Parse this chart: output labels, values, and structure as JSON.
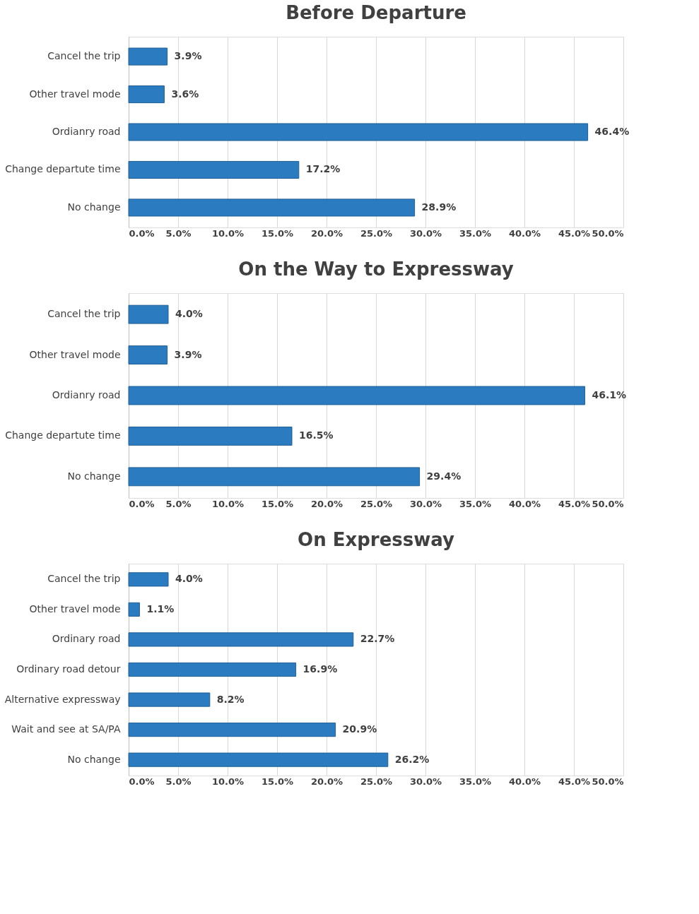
{
  "chart_data": [
    {
      "type": "bar",
      "orientation": "horizontal",
      "title": "Before Departure",
      "categories": [
        "Cancel the trip",
        "Other travel mode",
        "Ordianry road",
        "Change departute time",
        "No change"
      ],
      "values": [
        3.9,
        3.6,
        46.4,
        17.2,
        28.9
      ],
      "value_labels": [
        "3.9%",
        "3.6%",
        "46.4%",
        "17.2%",
        "28.9%"
      ],
      "color": "#2a7bc0",
      "xlim": [
        0,
        50
      ],
      "xticks": [
        {
          "value": 0,
          "label": "0.0%"
        },
        {
          "value": 5,
          "label": "5.0%"
        },
        {
          "value": 10,
          "label": "10.0%"
        },
        {
          "value": 15,
          "label": "15.0%"
        },
        {
          "value": 20,
          "label": "20.0%"
        },
        {
          "value": 25,
          "label": "25.0%"
        },
        {
          "value": 30,
          "label": "30.0%"
        },
        {
          "value": 35,
          "label": "35.0%"
        },
        {
          "value": 40,
          "label": "40.0%"
        },
        {
          "value": 45,
          "label": "45.0%"
        },
        {
          "value": 50,
          "label": "50.0%"
        }
      ],
      "grid": "x"
    },
    {
      "type": "bar",
      "orientation": "horizontal",
      "title": "On the Way to Expressway",
      "categories": [
        "Cancel the trip",
        "Other travel mode",
        "Ordianry road",
        "Change departute time",
        "No change"
      ],
      "values": [
        4.0,
        3.9,
        46.1,
        16.5,
        29.4
      ],
      "value_labels": [
        "4.0%",
        "3.9%",
        "46.1%",
        "16.5%",
        "29.4%"
      ],
      "color": "#2a7bc0",
      "xlim": [
        0,
        50
      ],
      "xticks": [
        {
          "value": 0,
          "label": "0.0%"
        },
        {
          "value": 5,
          "label": "5.0%"
        },
        {
          "value": 10,
          "label": "10.0%"
        },
        {
          "value": 15,
          "label": "15.0%"
        },
        {
          "value": 20,
          "label": "20.0%"
        },
        {
          "value": 25,
          "label": "25.0%"
        },
        {
          "value": 30,
          "label": "30.0%"
        },
        {
          "value": 35,
          "label": "35.0%"
        },
        {
          "value": 40,
          "label": "40.0%"
        },
        {
          "value": 45,
          "label": "45.0%"
        },
        {
          "value": 50,
          "label": "50.0%"
        }
      ],
      "grid": "x"
    },
    {
      "type": "bar",
      "orientation": "horizontal",
      "title": "On Expressway",
      "categories": [
        "Cancel the trip",
        "Other travel mode",
        "Ordinary road",
        "Ordinary road detour",
        "Alternative expressway",
        "Wait and see at SA/PA",
        "No change"
      ],
      "values": [
        4.0,
        1.1,
        22.7,
        16.9,
        8.2,
        20.9,
        26.2
      ],
      "value_labels": [
        "4.0%",
        "1.1%",
        "22.7%",
        "16.9%",
        "8.2%",
        "20.9%",
        "26.2%"
      ],
      "color": "#2a7bc0",
      "xlim": [
        0,
        50
      ],
      "xticks": [
        {
          "value": 0,
          "label": "0.0%"
        },
        {
          "value": 5,
          "label": "5.0%"
        },
        {
          "value": 10,
          "label": "10.0%"
        },
        {
          "value": 15,
          "label": "15.0%"
        },
        {
          "value": 20,
          "label": "20.0%"
        },
        {
          "value": 25,
          "label": "25.0%"
        },
        {
          "value": 30,
          "label": "30.0%"
        },
        {
          "value": 35,
          "label": "35.0%"
        },
        {
          "value": 40,
          "label": "40.0%"
        },
        {
          "value": 45,
          "label": "45.0%"
        },
        {
          "value": 50,
          "label": "50.0%"
        }
      ],
      "grid": "x"
    }
  ]
}
